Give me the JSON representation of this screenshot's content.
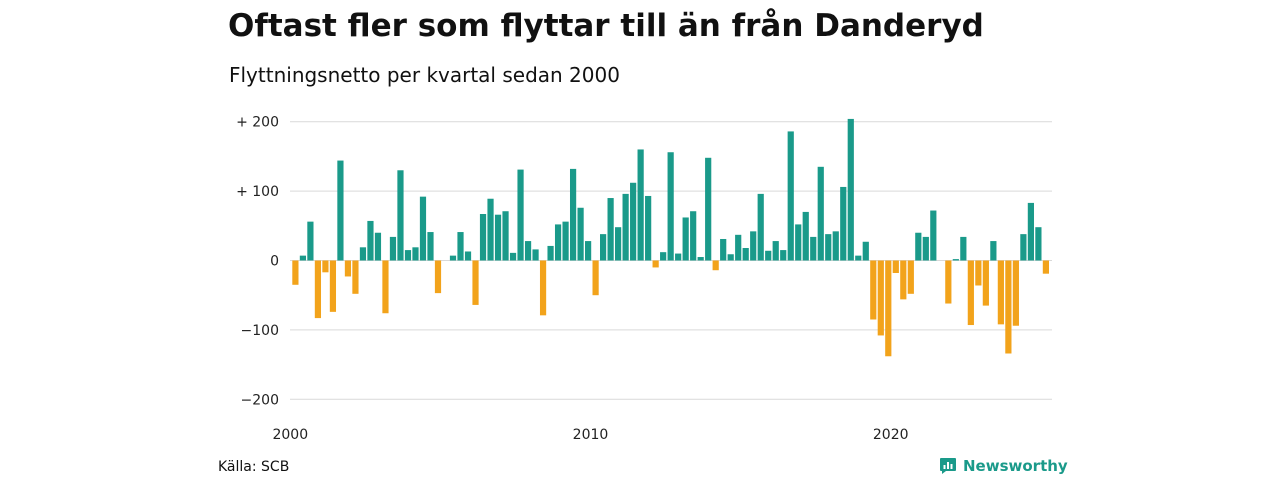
{
  "header": {
    "title": "Oftast fler som flyttar till än från Danderyd",
    "subtitle": "Flyttningsnetto per kvartal sedan 2000"
  },
  "footer": {
    "source": "Källa: SCB",
    "brand": "Newsworthy"
  },
  "colors": {
    "positive": "#1a9a8a",
    "negative": "#f2a31b",
    "grid": "#d9d9d9",
    "brand": "#1a9a8a"
  },
  "icons": {
    "brand_logo": "chart-bubble-icon"
  },
  "chart_data": {
    "type": "bar",
    "x_start": "2000-Q1",
    "frequency": "quarterly",
    "x_ticks": [
      "2000",
      "2010",
      "2020"
    ],
    "y_ticks": [
      {
        "value": 200,
        "label": "+ 200"
      },
      {
        "value": 100,
        "label": "+ 100"
      },
      {
        "value": 0,
        "label": "0"
      },
      {
        "value": -100,
        "label": "−100"
      },
      {
        "value": -200,
        "label": "−200"
      }
    ],
    "ylim": [
      -200,
      205
    ],
    "grid": true,
    "values": [
      -35,
      7,
      56,
      -83,
      -17,
      -74,
      144,
      -23,
      -48,
      19,
      57,
      40,
      -76,
      34,
      130,
      15,
      19,
      92,
      41,
      -47,
      0,
      7,
      41,
      13,
      -64,
      67,
      89,
      66,
      71,
      11,
      131,
      28,
      16,
      -79,
      21,
      52,
      56,
      132,
      76,
      28,
      -50,
      38,
      90,
      48,
      96,
      112,
      160,
      93,
      -10,
      12,
      156,
      10,
      62,
      71,
      5,
      148,
      -14,
      31,
      9,
      37,
      18,
      42,
      96,
      14,
      28,
      15,
      186,
      52,
      70,
      34,
      135,
      38,
      42,
      106,
      204,
      7,
      27,
      -85,
      -108,
      -138,
      -18,
      -56,
      -48,
      40,
      34,
      72,
      0,
      -62,
      2,
      34,
      -93,
      -36,
      -65,
      28,
      -92,
      -134,
      -94,
      38,
      83,
      48,
      -19
    ]
  }
}
